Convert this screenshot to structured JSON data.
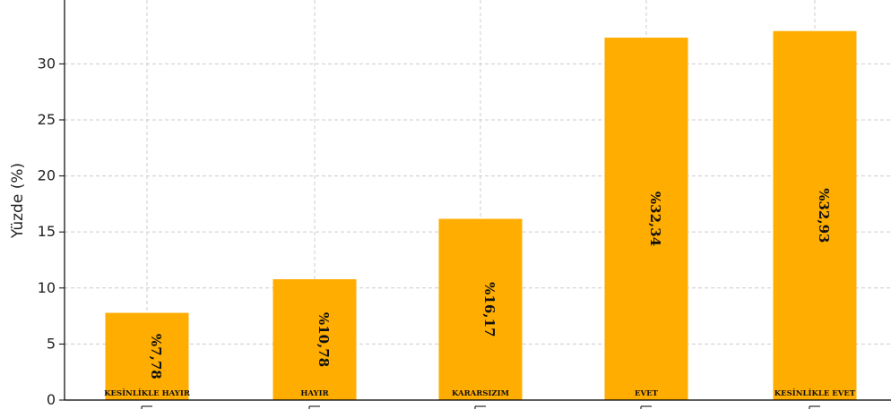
{
  "chart_data": {
    "type": "bar",
    "categories": [
      "KESİNLİKLE HAYIR",
      "HAYIR",
      "KARARSIZIM",
      "EVET",
      "KESİNLİKLE EVET"
    ],
    "values": [
      7.78,
      10.78,
      16.17,
      32.34,
      32.93
    ],
    "value_labels": [
      "%7,78",
      "%10,78",
      "%16,17",
      "%32,34",
      "%32,93"
    ],
    "ylabel": "Yüzde (%)",
    "yticks": [
      0,
      5,
      10,
      15,
      20,
      25,
      30
    ],
    "ylim": [
      0,
      35.7
    ],
    "grid": true,
    "bar_color": "#FFAD00",
    "grid_color": "#cccccc"
  }
}
